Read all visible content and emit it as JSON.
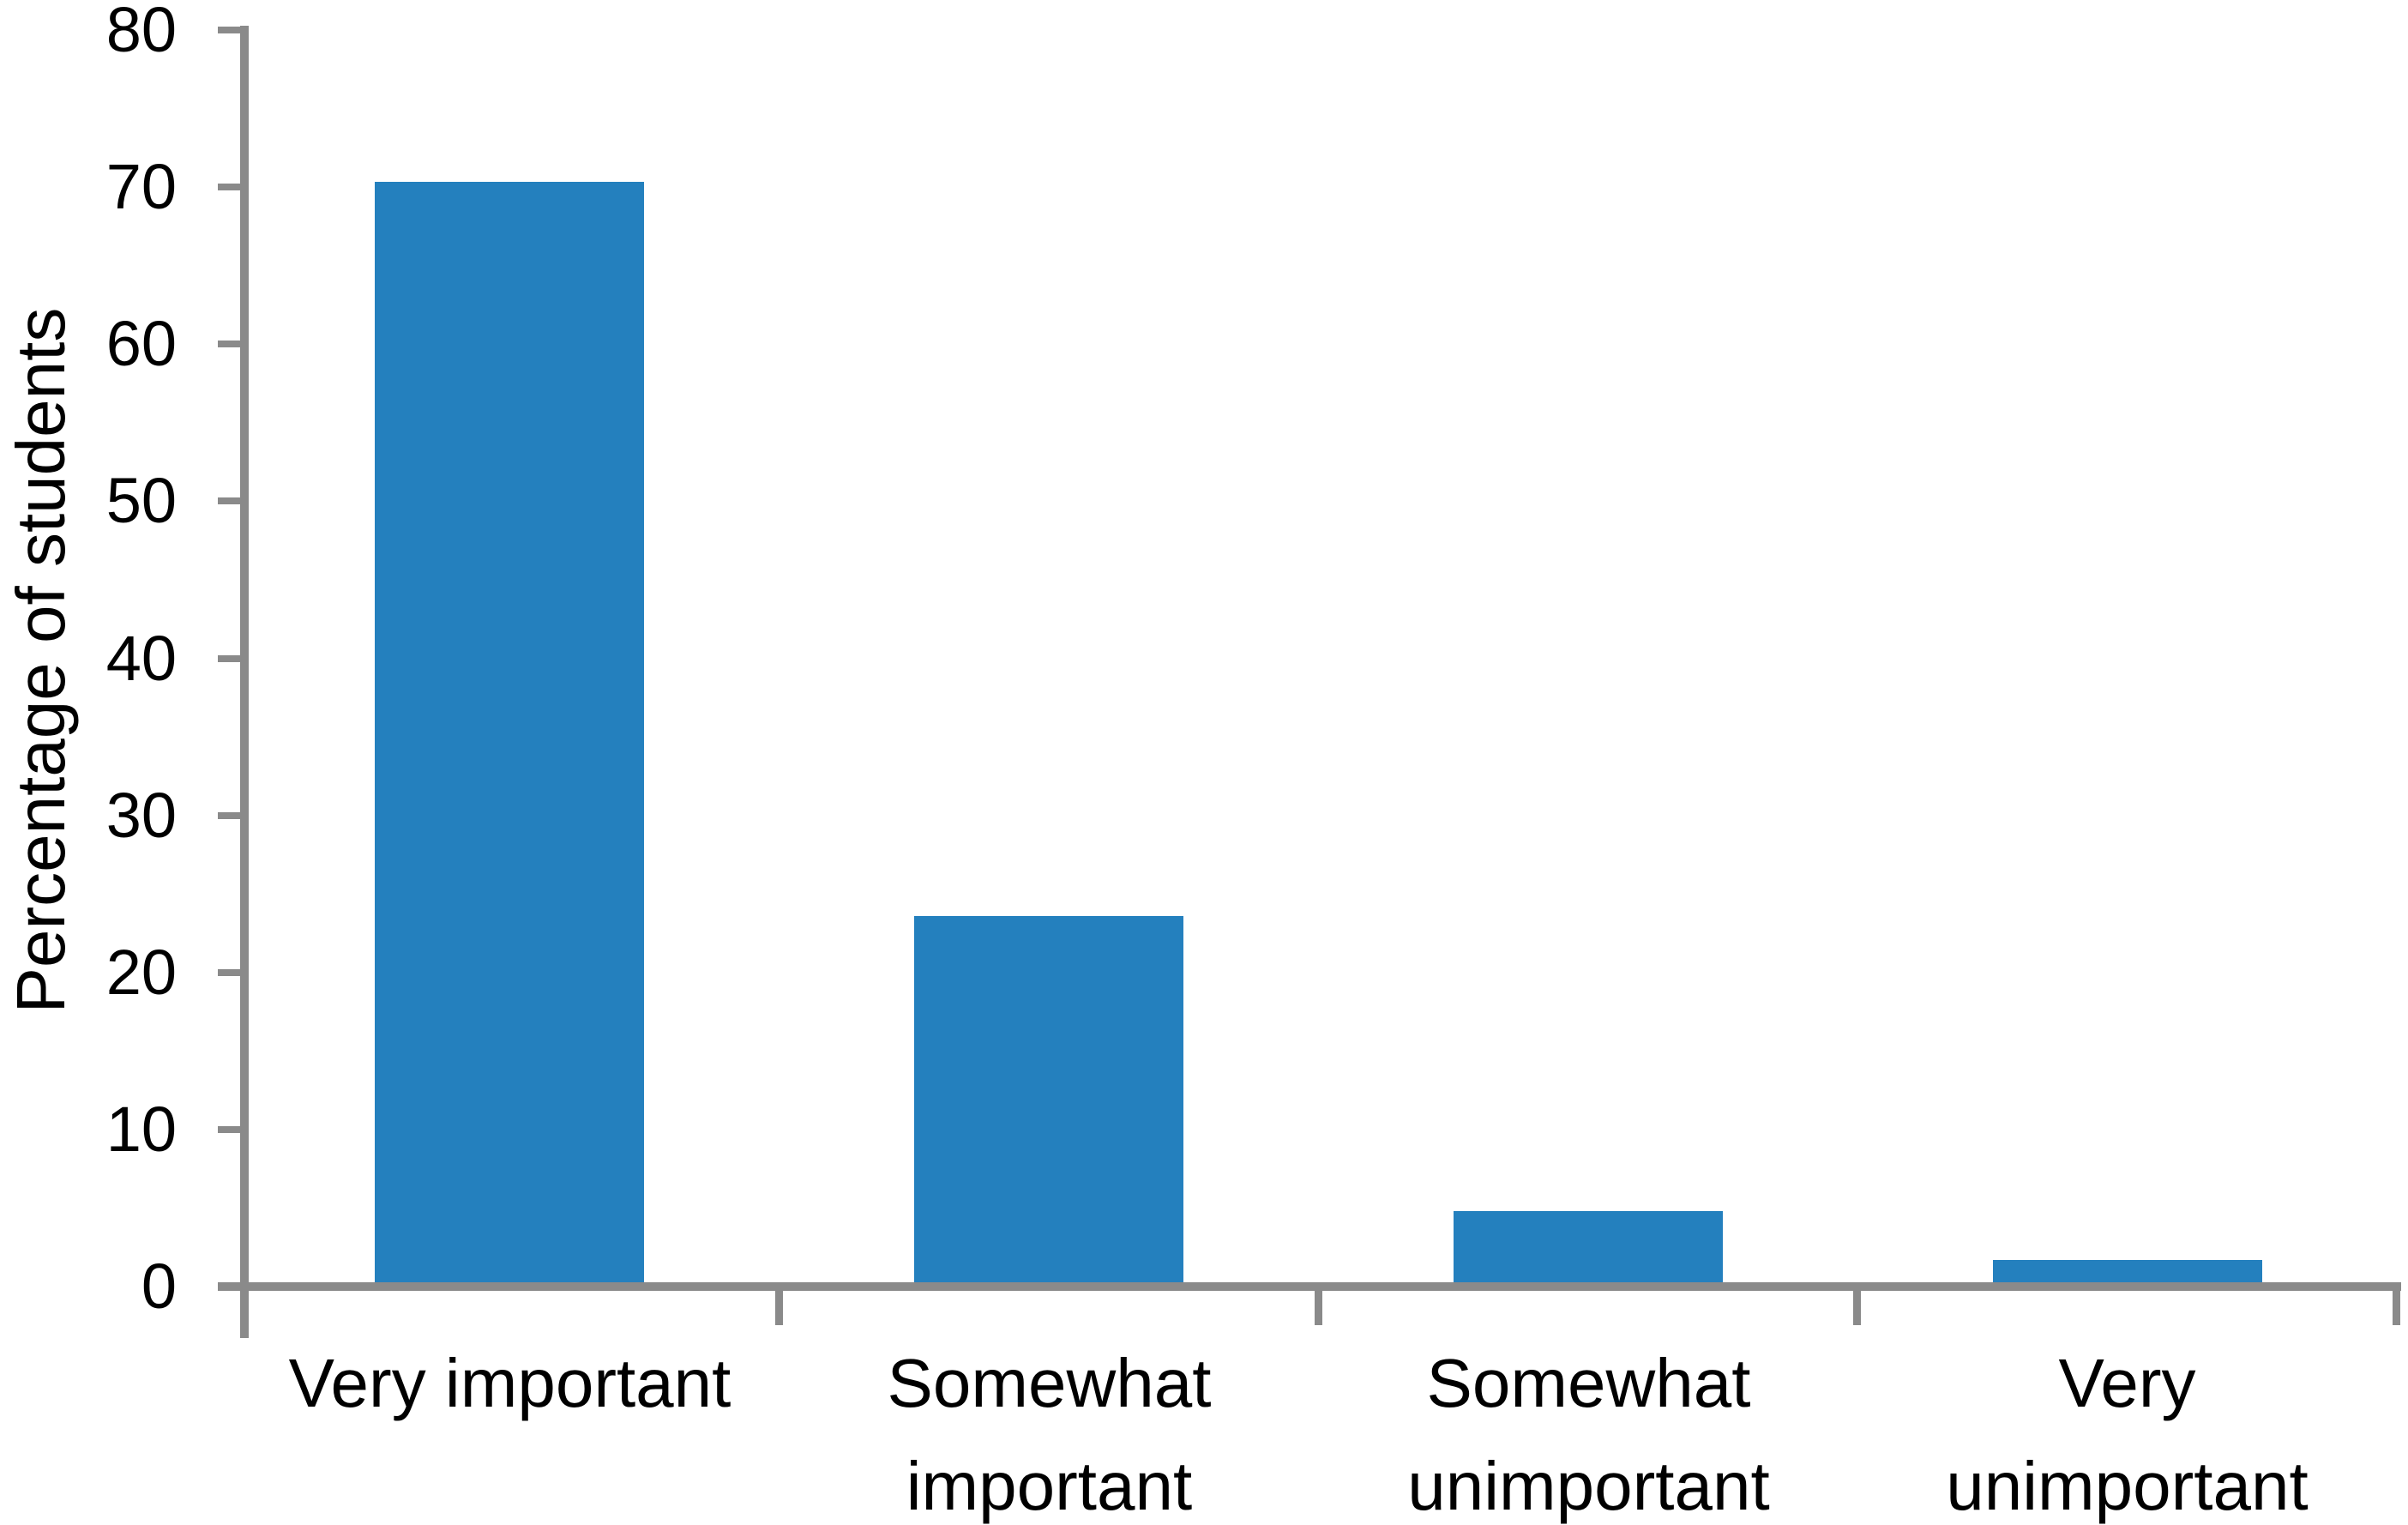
{
  "figure": {
    "background": "#FFFFFF"
  },
  "chart_data": {
    "type": "bar",
    "title": "",
    "categories": [
      "Very important",
      "Somewhat important",
      "Somewhat unimportant",
      "Very unimportant"
    ],
    "category_label_lines": [
      [
        "Very important"
      ],
      [
        "Somewhat",
        "important"
      ],
      [
        "Somewhat",
        "unimportant"
      ],
      [
        "Very",
        "unimportant"
      ]
    ],
    "values": [
      70.2,
      23.5,
      4.7,
      1.6
    ],
    "xlabel": "",
    "ylabel": "Percentage of students",
    "ylim": [
      0,
      80
    ],
    "ytick_interval": 10,
    "ytick_labels": [
      "0",
      "10",
      "20",
      "30",
      "40",
      "50",
      "60",
      "70",
      "80"
    ],
    "gridlines": "off",
    "legend": "none",
    "bar_color": "#2480BE",
    "axis_color": "#8A8A8A",
    "text_color": "#000000"
  }
}
